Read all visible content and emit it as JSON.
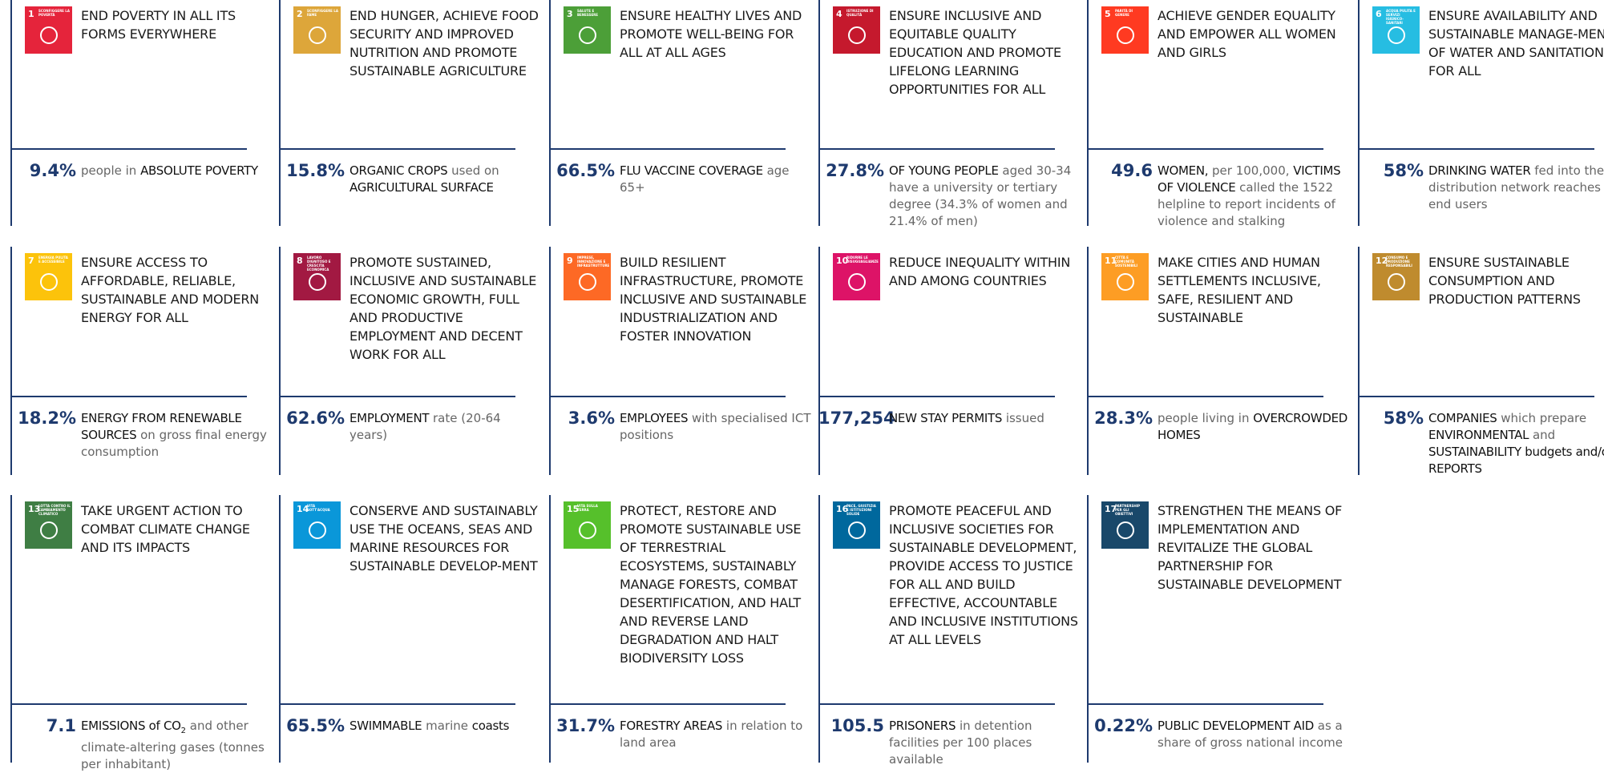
{
  "goals": [
    {
      "number": "1",
      "label": "SCONFIGGERE LA POVERTÀ",
      "color": "#e5243b",
      "title": "END POVERTY IN ALL ITS FORMS EVERYWHERE",
      "stat": {
        "value": "9.4%",
        "segments": [
          {
            "text": "people in ",
            "style": "normal"
          },
          {
            "text": "ABSOLUTE POVERTY",
            "style": "strong"
          }
        ]
      }
    },
    {
      "number": "2",
      "label": "SCONFIGGERE LA FAME",
      "color": "#dda63a",
      "title": "END HUNGER, ACHIEVE FOOD SECURITY AND IMPROVED NUTRITION AND PROMOTE SUSTAINABLE AGRICULTURE",
      "stat": {
        "value": "15.8%",
        "segments": [
          {
            "text": "ORGANIC CROPS",
            "style": "strong"
          },
          {
            "text": " used on ",
            "style": "normal"
          },
          {
            "text": "AGRICULTURAL SURFACE",
            "style": "strong"
          }
        ]
      }
    },
    {
      "number": "3",
      "label": "SALUTE E BENESSERE",
      "color": "#4c9f38",
      "title": "ENSURE HEALTHY LIVES AND PROMOTE WELL-BEING FOR ALL AT ALL AGES",
      "stat": {
        "value": "66.5%",
        "segments": [
          {
            "text": "FLU VACCINE COVERAGE",
            "style": "strong"
          },
          {
            "text": " age 65+",
            "style": "normal"
          }
        ]
      }
    },
    {
      "number": "4",
      "label": "ISTRUZIONE DI QUALITÀ",
      "color": "#c5192d",
      "title": "ENSURE INCLUSIVE AND EQUITABLE QUALITY EDUCATION AND PROMOTE LIFELONG LEARNING OPPORTUNITIES FOR ALL",
      "stat": {
        "value": "27.8%",
        "segments": [
          {
            "text": "OF YOUNG PEOPLE",
            "style": "strong"
          },
          {
            "text": " aged 30-34 have a university or tertiary degree (34.3% of women and 21.4% of men)",
            "style": "normal"
          }
        ]
      }
    },
    {
      "number": "5",
      "label": "PARITÀ DI GENERE",
      "color": "#ff3a21",
      "title": "ACHIEVE GENDER EQUALITY AND EMPOWER ALL WOMEN AND GIRLS",
      "stat": {
        "value": "49.6",
        "segments": [
          {
            "text": "WOMEN,",
            "style": "strong"
          },
          {
            "text": " per 100,000, ",
            "style": "normal"
          },
          {
            "text": "VICTIMS OF VIOLENCE",
            "style": "strong"
          },
          {
            "text": " called the 1522 helpline  to report incidents of violence and stalking",
            "style": "normal"
          }
        ]
      }
    },
    {
      "number": "6",
      "label": "ACQUA PULITA E SERVIZI IGIENICO-SANITARI",
      "color": "#26bde2",
      "title": "ENSURE AVAILABILITY AND SUSTAINABLE MANAGE-MENT OF WATER AND SANITATION FOR ALL",
      "stat": {
        "value": "58%",
        "segments": [
          {
            "text": "DRINKING WATER",
            "style": "strong"
          },
          {
            "text": "  fed into the distribution network reaches end users",
            "style": "normal"
          }
        ]
      }
    },
    {
      "number": "7",
      "label": "ENERGIA PULITA E ACCESSIBILE",
      "color": "#fcc30b",
      "title": "ENSURE ACCESS TO AFFORDABLE, RELIABLE, SUSTAINABLE AND MODERN ENERGY FOR ALL",
      "stat": {
        "value": "18.2%",
        "segments": [
          {
            "text": "ENERGY FROM RENEWABLE SOURCES",
            "style": "strong"
          },
          {
            "text": " on gross final  energy consumption",
            "style": "normal"
          }
        ]
      }
    },
    {
      "number": "8",
      "label": "LAVORO DIGNITOSO E CRESCITA ECONOMICA",
      "color": "#a21942",
      "title": "PROMOTE SUSTAINED, INCLUSIVE AND SUSTAINABLE ECONOMIC GROWTH, FULL AND PRODUCTIVE EMPLOYMENT AND DECENT WORK FOR ALL",
      "stat": {
        "value": "62.6%",
        "segments": [
          {
            "text": "EMPLOYMENT",
            "style": "strong"
          },
          {
            "text": " rate (20-64 years)",
            "style": "normal"
          }
        ]
      }
    },
    {
      "number": "9",
      "label": "IMPRESE, INNOVAZIONE E INFRASTRUTTURE",
      "color": "#fd6925",
      "title": "BUILD RESILIENT INFRASTRUCTURE, PROMOTE INCLUSIVE AND SUSTAINABLE INDUSTRIALIZATION AND FOSTER INNOVATION",
      "stat": {
        "value": "3.6%",
        "segments": [
          {
            "text": "EMPLOYEES",
            "style": "strong"
          },
          {
            "text": " with specialised ICT positions",
            "style": "normal"
          }
        ]
      }
    },
    {
      "number": "10",
      "label": "RIDURRE LE DISUGUAGLIANZE",
      "color": "#dd1367",
      "title": "REDUCE INEQUALITY WITHIN AND AMONG COUNTRIES",
      "stat": {
        "value": "177,254",
        "segments": [
          {
            "text": "NEW STAY PERMITS",
            "style": "strong"
          },
          {
            "text": " issued",
            "style": "normal"
          }
        ]
      }
    },
    {
      "number": "11",
      "label": "CITTÀ E COMUNITÀ SOSTENIBILI",
      "color": "#fd9d24",
      "title": "MAKE CITIES AND HUMAN SETTLEMENTS INCLUSIVE, SAFE, RESILIENT AND SUSTAINABLE",
      "stat": {
        "value": "28.3%",
        "segments": [
          {
            "text": "people living in ",
            "style": "normal"
          },
          {
            "text": "OVERCROWDED HOMES",
            "style": "strong"
          }
        ]
      }
    },
    {
      "number": "12",
      "label": "CONSUMO E PRODUZIONE RESPONSABILI",
      "color": "#bf8b2e",
      "title": "ENSURE SUSTAINABLE CONSUMPTION AND PRODUCTION PATTERNS",
      "stat": {
        "value": "58%",
        "segments": [
          {
            "text": "COMPANIES",
            "style": "strong"
          },
          {
            "text": " which prepare ",
            "style": "normal"
          },
          {
            "text": "ENVIRONMENTAL",
            "style": "strong"
          },
          {
            "text": " and ",
            "style": "normal"
          },
          {
            "text": "SUSTAINABILITY budgets and/or REPORTS",
            "style": "strong"
          }
        ]
      }
    },
    {
      "number": "13",
      "label": "LOTTA CONTRO IL CAMBIAMENTO CLIMATICO",
      "color": "#3f7e44",
      "title": "TAKE URGENT ACTION TO COMBAT CLIMATE CHANGE AND ITS IMPACTS",
      "stat": {
        "value": "7.1",
        "segments": [
          {
            "text": "EMISSIONS of CO",
            "style": "strong"
          },
          {
            "text": "2",
            "style": "sub"
          },
          {
            "text": " and other climate-altering gases (tonnes per inhabitant)",
            "style": "normal"
          }
        ]
      }
    },
    {
      "number": "14",
      "label": "VITA SOTT'ACQUA",
      "color": "#0a97d9",
      "title": "CONSERVE AND SUSTAINABLY USE THE OCEANS, SEAS AND MARINE RESOURCES FOR SUSTAINABLE DEVELOP-MENT",
      "stat": {
        "value": "65.5%",
        "segments": [
          {
            "text": "SWIMMABLE",
            "style": "strong"
          },
          {
            "text": " marine ",
            "style": "normal"
          },
          {
            "text": "coasts",
            "style": "strong"
          }
        ]
      }
    },
    {
      "number": "15",
      "label": "VITA SULLA TERRA",
      "color": "#56c02b",
      "title": "PROTECT, RESTORE AND PROMOTE SUSTAINABLE USE OF TERRESTRIAL ECOSYSTEMS, SUSTAINABLY MANAGE FORESTS, COMBAT DESERTIFICATION, AND HALT AND REVERSE LAND DEGRADATION AND HALT BIODIVERSITY LOSS",
      "stat": {
        "value": "31.7%",
        "segments": [
          {
            "text": "FORESTRY AREAS",
            "style": "strong"
          },
          {
            "text": " in relation to land area",
            "style": "normal"
          }
        ]
      }
    },
    {
      "number": "16",
      "label": "PACE, GIUSTIZIA E ISTITUZIONI SOLIDE",
      "color": "#00689d",
      "title": "PROMOTE PEACEFUL AND INCLUSIVE SOCIETIES FOR SUSTAINABLE DEVELOPMENT, PROVIDE ACCESS TO JUSTICE FOR ALL AND BUILD EFFECTIVE, ACCOUNTABLE AND INCLUSIVE INSTITUTIONS AT ALL LEVELS",
      "stat": {
        "value": "105.5",
        "segments": [
          {
            "text": "PRISONERS",
            "style": "strong"
          },
          {
            "text": " in detention facilities per 100 places available",
            "style": "normal"
          }
        ]
      }
    },
    {
      "number": "17",
      "label": "PARTNERSHIP PER GLI OBIETTIVI",
      "color": "#19486a",
      "title": "STRENGTHEN THE MEANS OF IMPLEMENTATION AND REVITALIZE THE GLOBAL PARTNERSHIP FOR SUSTAINABLE DEVELOPMENT",
      "stat": {
        "value": "0.22%",
        "segments": [
          {
            "text": "PUBLIC DEVELOPMENT AID",
            "style": "strong"
          },
          {
            "text": " as a share of gross national income",
            "style": "normal"
          }
        ]
      }
    }
  ]
}
